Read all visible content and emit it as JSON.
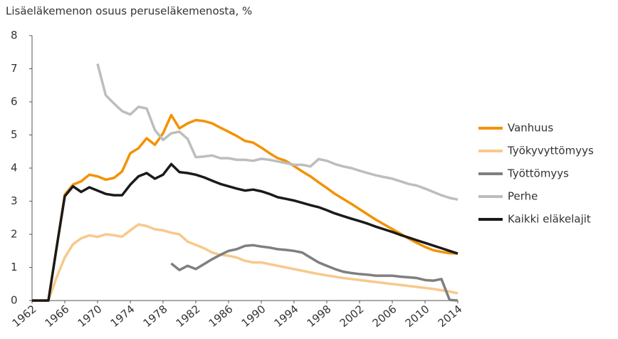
{
  "chart_data": {
    "type": "line",
    "title": "Lisäeläkemenon osuus peruseläkemenosta, %",
    "x": [
      1962,
      1963,
      1964,
      1965,
      1966,
      1967,
      1968,
      1969,
      1970,
      1971,
      1972,
      1973,
      1974,
      1975,
      1976,
      1977,
      1978,
      1979,
      1980,
      1981,
      1982,
      1983,
      1984,
      1985,
      1986,
      1987,
      1988,
      1989,
      1990,
      1991,
      1992,
      1993,
      1994,
      1995,
      1996,
      1997,
      1998,
      1999,
      2000,
      2001,
      2002,
      2003,
      2004,
      2005,
      2006,
      2007,
      2008,
      2009,
      2010,
      2011,
      2012,
      2013,
      2014
    ],
    "series": [
      {
        "name": "Vanhuus",
        "color": "#f39200",
        "values": [
          0,
          0,
          0,
          1.6,
          3.2,
          3.5,
          3.6,
          3.8,
          3.75,
          3.65,
          3.7,
          3.9,
          4.45,
          4.6,
          4.9,
          4.7,
          5.05,
          5.6,
          5.2,
          5.35,
          5.45,
          5.42,
          5.35,
          5.22,
          5.1,
          4.97,
          4.82,
          4.77,
          4.62,
          4.45,
          4.3,
          4.22,
          4.06,
          3.9,
          3.75,
          3.57,
          3.4,
          3.22,
          3.07,
          2.92,
          2.76,
          2.6,
          2.44,
          2.3,
          2.16,
          2.02,
          1.87,
          1.74,
          1.62,
          1.52,
          1.47,
          1.43,
          1.42
        ]
      },
      {
        "name": "Työkyvyttömyys",
        "color": "#f7c98b",
        "values": [
          null,
          null,
          0,
          0.7,
          1.3,
          1.7,
          1.88,
          1.97,
          1.92,
          2.0,
          1.97,
          1.93,
          2.12,
          2.3,
          2.25,
          2.15,
          2.12,
          2.05,
          2.0,
          1.78,
          1.68,
          1.58,
          1.45,
          1.38,
          1.35,
          1.3,
          1.2,
          1.15,
          1.15,
          1.1,
          1.05,
          1.0,
          0.95,
          0.9,
          0.85,
          0.8,
          0.76,
          0.72,
          0.68,
          0.65,
          0.62,
          0.59,
          0.56,
          0.53,
          0.5,
          0.47,
          0.44,
          0.41,
          0.38,
          0.35,
          0.31,
          0.27,
          0.22
        ]
      },
      {
        "name": "Työttömyys",
        "color": "#7f7f7f",
        "values": [
          null,
          null,
          null,
          null,
          null,
          null,
          null,
          null,
          null,
          null,
          null,
          null,
          null,
          null,
          null,
          null,
          null,
          1.12,
          0.92,
          1.05,
          0.95,
          1.1,
          1.25,
          1.38,
          1.5,
          1.55,
          1.65,
          1.67,
          1.63,
          1.6,
          1.55,
          1.53,
          1.5,
          1.45,
          1.3,
          1.15,
          1.05,
          0.95,
          0.87,
          0.83,
          0.8,
          0.78,
          0.75,
          0.75,
          0.75,
          0.72,
          0.7,
          0.68,
          0.62,
          0.6,
          0.65,
          0.02,
          0
        ]
      },
      {
        "name": "Perhe",
        "color": "#bdbdbd",
        "values": [
          null,
          null,
          null,
          null,
          null,
          null,
          null,
          null,
          7.15,
          6.2,
          5.95,
          5.72,
          5.62,
          5.85,
          5.8,
          5.15,
          4.85,
          5.05,
          5.1,
          4.88,
          4.33,
          4.35,
          4.38,
          4.3,
          4.3,
          4.25,
          4.25,
          4.22,
          4.28,
          4.25,
          4.2,
          4.15,
          4.1,
          4.1,
          4.05,
          4.27,
          4.22,
          4.12,
          4.05,
          4.0,
          3.92,
          3.85,
          3.78,
          3.73,
          3.68,
          3.6,
          3.52,
          3.47,
          3.38,
          3.28,
          3.18,
          3.1,
          3.05
        ]
      },
      {
        "name": "Kaikki eläkelajit",
        "color": "#1a1a1a",
        "values": [
          0,
          0,
          0,
          1.6,
          3.15,
          3.45,
          3.28,
          3.42,
          3.32,
          3.22,
          3.18,
          3.18,
          3.5,
          3.75,
          3.85,
          3.68,
          3.8,
          4.12,
          3.88,
          3.85,
          3.8,
          3.72,
          3.62,
          3.52,
          3.45,
          3.38,
          3.32,
          3.35,
          3.3,
          3.22,
          3.12,
          3.07,
          3.02,
          2.95,
          2.88,
          2.82,
          2.73,
          2.63,
          2.55,
          2.47,
          2.4,
          2.32,
          2.23,
          2.15,
          2.07,
          1.98,
          1.9,
          1.82,
          1.74,
          1.66,
          1.58,
          1.5,
          1.42
        ]
      }
    ],
    "xlim": [
      1962,
      2014
    ],
    "xticks": [
      1962,
      1966,
      1970,
      1974,
      1978,
      1982,
      1986,
      1990,
      1994,
      1998,
      2002,
      2006,
      2010,
      2014
    ],
    "ylim": [
      0,
      8
    ],
    "yticks": [
      0,
      1,
      2,
      3,
      4,
      5,
      6,
      7,
      8
    ],
    "grid": false,
    "legend": "right"
  }
}
